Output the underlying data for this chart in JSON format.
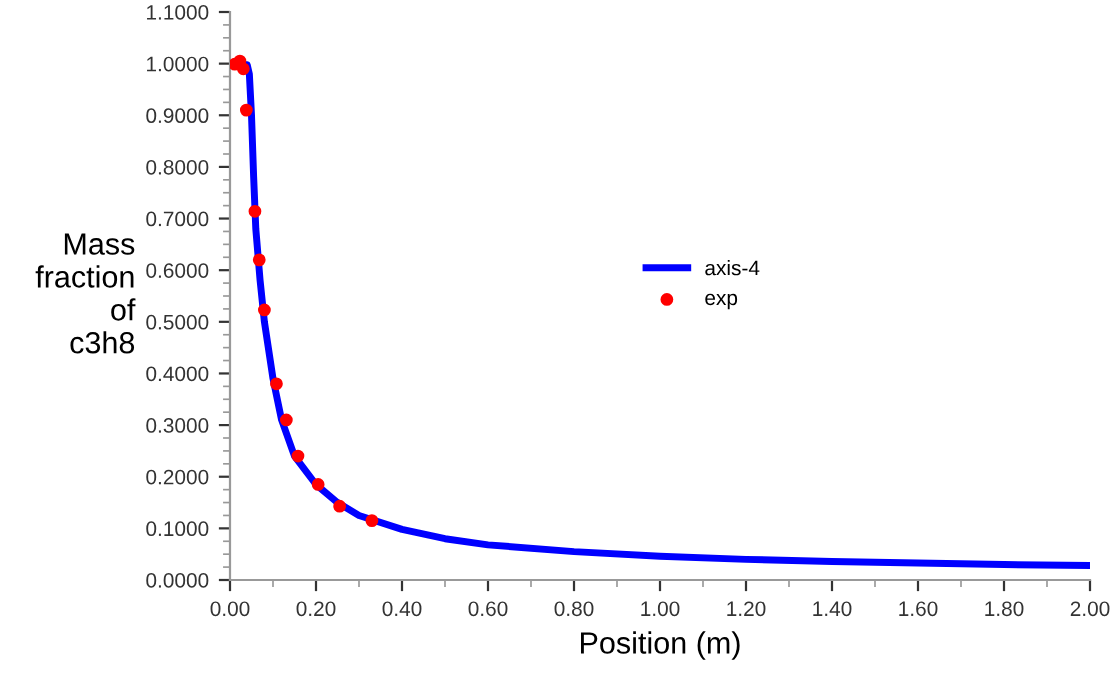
{
  "chart_data": {
    "type": "line",
    "xlabel": "Position (m)",
    "ylabel": "Mass\nfraction\nof\nc3h8",
    "xlim": [
      0,
      2
    ],
    "ylim": [
      0,
      1.1
    ],
    "xticks": [
      {
        "value": 0,
        "label": "0.00"
      },
      {
        "value": 0.2,
        "label": "0.20"
      },
      {
        "value": 0.4,
        "label": "0.40"
      },
      {
        "value": 0.6,
        "label": "0.60"
      },
      {
        "value": 0.8,
        "label": "0.80"
      },
      {
        "value": 1.0,
        "label": "1.00"
      },
      {
        "value": 1.2,
        "label": "1.20"
      },
      {
        "value": 1.4,
        "label": "1.40"
      },
      {
        "value": 1.6,
        "label": "1.60"
      },
      {
        "value": 1.8,
        "label": "1.80"
      },
      {
        "value": 2.0,
        "label": "2.00"
      }
    ],
    "yticks": [
      {
        "value": 0,
        "label": "0.0000"
      },
      {
        "value": 0.1,
        "label": "0.1000"
      },
      {
        "value": 0.2,
        "label": "0.2000"
      },
      {
        "value": 0.3,
        "label": "0.3000"
      },
      {
        "value": 0.4,
        "label": "0.4000"
      },
      {
        "value": 0.5,
        "label": "0.5000"
      },
      {
        "value": 0.6,
        "label": "0.6000"
      },
      {
        "value": 0.7,
        "label": "0.7000"
      },
      {
        "value": 0.8,
        "label": "0.8000"
      },
      {
        "value": 0.9,
        "label": "0.9000"
      },
      {
        "value": 1.0,
        "label": "1.0000"
      },
      {
        "value": 1.1,
        "label": "1.1000"
      }
    ],
    "grid": false,
    "legend": "center",
    "series": [
      {
        "name": "axis-4",
        "color": "#0000ff",
        "x": [
          0,
          0.04,
          0.045,
          0.05,
          0.055,
          0.06,
          0.07,
          0.08,
          0.1,
          0.12,
          0.15,
          0.2,
          0.25,
          0.3,
          0.4,
          0.5,
          0.6,
          0.8,
          1.0,
          1.2,
          1.4,
          1.6,
          1.8,
          2.0
        ],
        "values": [
          1.0,
          0.998,
          0.98,
          0.9,
          0.78,
          0.68,
          0.58,
          0.5,
          0.39,
          0.31,
          0.24,
          0.185,
          0.15,
          0.125,
          0.098,
          0.08,
          0.068,
          0.055,
          0.046,
          0.04,
          0.036,
          0.033,
          0.03,
          0.028
        ]
      },
      {
        "name": "exp",
        "type": "scatter",
        "color": "#ff0000",
        "marker": "circle",
        "x": [
          0.011,
          0.023,
          0.031,
          0.038,
          0.058,
          0.068,
          0.08,
          0.108,
          0.131,
          0.158,
          0.205,
          0.255,
          0.33
        ],
        "values": [
          0.999,
          1.005,
          0.99,
          0.91,
          0.714,
          0.62,
          0.523,
          0.38,
          0.31,
          0.24,
          0.185,
          0.143,
          0.115
        ]
      }
    ]
  }
}
